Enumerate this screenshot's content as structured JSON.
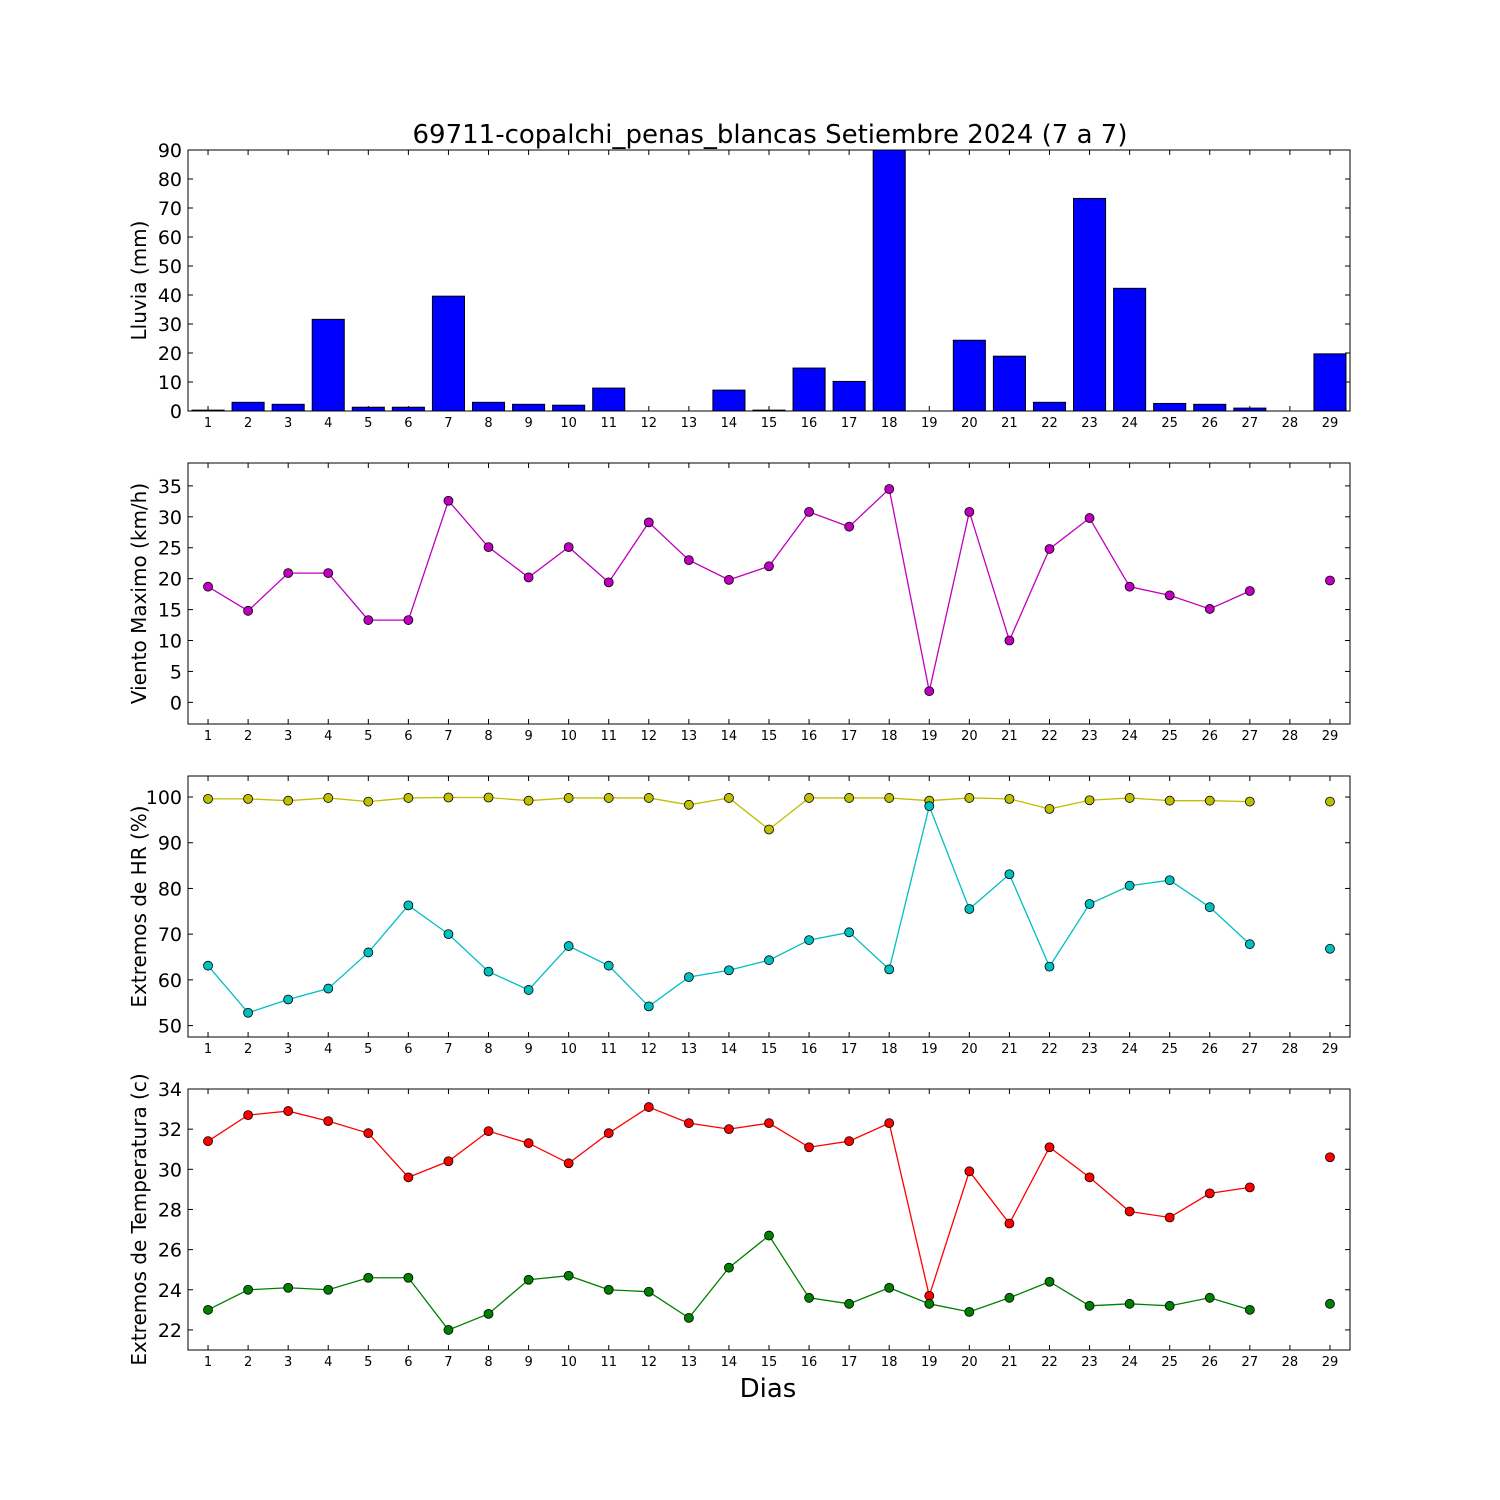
{
  "chart_data": {
    "title": "69711-copalchi_penas_blancas Setiembre 2024  (7 a 7)",
    "xlabel": "Dias",
    "days": [
      1,
      2,
      3,
      4,
      5,
      6,
      7,
      8,
      9,
      10,
      11,
      12,
      13,
      14,
      15,
      16,
      17,
      18,
      19,
      20,
      21,
      22,
      23,
      24,
      25,
      26,
      27,
      28,
      29
    ],
    "panels": [
      {
        "type": "bar",
        "ylabel": "Lluvia (mm)",
        "ylim": [
          0,
          90
        ],
        "yticks": [
          0,
          10,
          20,
          30,
          40,
          50,
          60,
          70,
          80,
          90
        ],
        "series": [
          {
            "color": "#0000ff",
            "values": [
              0.3,
              3.0,
              2.3,
              31.6,
              1.3,
              1.3,
              39.6,
              3.0,
              2.3,
              2.0,
              7.9,
              0,
              0,
              7.2,
              0.3,
              14.8,
              10.2,
              90,
              0,
              24.4,
              18.9,
              3.0,
              73.3,
              42.3,
              2.6,
              2.3,
              1.0,
              0,
              19.7
            ]
          }
        ]
      },
      {
        "type": "line",
        "ylabel": "Viento Maximo (km/h)",
        "ylim": [
          -3.5,
          38.7
        ],
        "yticks": [
          0,
          5,
          10,
          15,
          20,
          25,
          30,
          35
        ],
        "series": [
          {
            "color": "#bf00bf",
            "values": [
              18.7,
              14.8,
              20.9,
              20.9,
              13.3,
              13.3,
              32.6,
              25.1,
              20.2,
              25.1,
              19.4,
              29.1,
              23.0,
              19.8,
              22.0,
              30.8,
              28.4,
              34.5,
              1.8,
              30.8,
              10.0,
              24.8,
              29.8,
              18.7,
              17.3,
              15.1,
              18.0,
              null,
              19.7
            ]
          }
        ]
      },
      {
        "type": "line",
        "ylabel": "Extremos de HR (%)",
        "ylim": [
          47.5,
          104.6
        ],
        "yticks": [
          50,
          60,
          70,
          80,
          90,
          100
        ],
        "series": [
          {
            "color": "#bfbf00",
            "values": [
              99.6,
              99.6,
              99.2,
              99.8,
              99.0,
              99.8,
              99.9,
              99.9,
              99.2,
              99.8,
              99.8,
              99.8,
              98.3,
              99.8,
              92.9,
              99.8,
              99.8,
              99.8,
              99.2,
              99.8,
              99.6,
              97.4,
              99.3,
              99.8,
              99.2,
              99.2,
              99.0,
              null,
              99.0
            ]
          },
          {
            "color": "#00bfbf",
            "values": [
              63.1,
              52.8,
              55.7,
              58.1,
              66.0,
              76.3,
              70.0,
              61.8,
              57.8,
              67.4,
              63.1,
              54.2,
              60.6,
              62.1,
              64.3,
              68.7,
              70.4,
              62.3,
              98.0,
              75.5,
              83.1,
              62.9,
              76.6,
              80.6,
              81.8,
              75.9,
              67.8,
              null,
              66.8
            ]
          }
        ]
      },
      {
        "type": "line",
        "ylabel": "Extremos de Temperatura (c)",
        "ylim": [
          21,
          34
        ],
        "yticks": [
          22,
          24,
          26,
          28,
          30,
          32,
          34
        ],
        "series": [
          {
            "color": "#ff0000",
            "values": [
              31.4,
              32.7,
              32.9,
              32.4,
              31.8,
              29.6,
              30.4,
              31.9,
              31.3,
              30.3,
              31.8,
              33.1,
              32.3,
              32.0,
              32.3,
              31.1,
              31.4,
              32.3,
              23.7,
              29.9,
              27.3,
              31.1,
              29.6,
              27.9,
              27.6,
              28.8,
              29.1,
              null,
              30.6
            ]
          },
          {
            "color": "#008000",
            "values": [
              23.0,
              24.0,
              24.1,
              24.0,
              24.6,
              24.6,
              22.0,
              22.8,
              24.5,
              24.7,
              24.0,
              23.9,
              22.6,
              25.1,
              26.7,
              23.6,
              23.3,
              24.1,
              23.3,
              22.9,
              23.6,
              24.4,
              23.2,
              23.3,
              23.2,
              23.6,
              23.0,
              null,
              23.3
            ]
          }
        ]
      }
    ]
  }
}
